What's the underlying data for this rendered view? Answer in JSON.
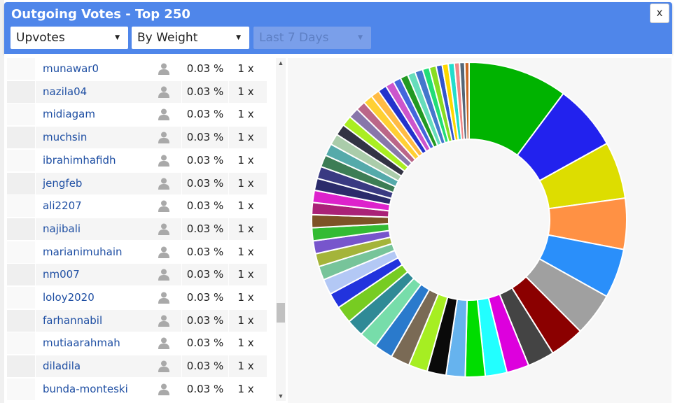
{
  "window": {
    "title": "Outgoing Votes - Top 250",
    "close_label": "x"
  },
  "filters": {
    "type": {
      "selected": "Upvotes"
    },
    "sort": {
      "selected": "By Weight"
    },
    "period": {
      "selected": "Last 7 Days",
      "disabled": true
    }
  },
  "list": {
    "rows": [
      {
        "name": "munawar0",
        "percent": "0.03 %",
        "count": "1 x"
      },
      {
        "name": "nazila04",
        "percent": "0.03 %",
        "count": "1 x"
      },
      {
        "name": "midiagam",
        "percent": "0.03 %",
        "count": "1 x"
      },
      {
        "name": "muchsin",
        "percent": "0.03 %",
        "count": "1 x"
      },
      {
        "name": "ibrahimhafidh",
        "percent": "0.03 %",
        "count": "1 x"
      },
      {
        "name": "jengfeb",
        "percent": "0.03 %",
        "count": "1 x"
      },
      {
        "name": "ali2207",
        "percent": "0.03 %",
        "count": "1 x"
      },
      {
        "name": "najibali",
        "percent": "0.03 %",
        "count": "1 x"
      },
      {
        "name": "marianimuhain",
        "percent": "0.03 %",
        "count": "1 x"
      },
      {
        "name": "nm007",
        "percent": "0.03 %",
        "count": "1 x"
      },
      {
        "name": "loloy2020",
        "percent": "0.03 %",
        "count": "1 x"
      },
      {
        "name": "farhannabil",
        "percent": "0.03 %",
        "count": "1 x"
      },
      {
        "name": "mutiaarahmah",
        "percent": "0.03 %",
        "count": "1 x"
      },
      {
        "name": "diladila",
        "percent": "0.03 %",
        "count": "1 x"
      },
      {
        "name": "bunda-monteski",
        "percent": "0.03 %",
        "count": "1 x"
      }
    ]
  },
  "chart_data": {
    "type": "pie",
    "donut": true,
    "title": "",
    "legend": "none",
    "slices": [
      {
        "value": 11.5,
        "color": "#00b300"
      },
      {
        "value": 7.6,
        "color": "#2222ee"
      },
      {
        "value": 6.6,
        "color": "#dddd00"
      },
      {
        "value": 5.9,
        "color": "#ff9144"
      },
      {
        "value": 5.7,
        "color": "#2a8ffa"
      },
      {
        "value": 5.0,
        "color": "#a0a0a0"
      },
      {
        "value": 4.0,
        "color": "#8b0000"
      },
      {
        "value": 3.1,
        "color": "#444444"
      },
      {
        "value": 2.6,
        "color": "#dd00dd"
      },
      {
        "value": 2.5,
        "color": "#22ffff"
      },
      {
        "value": 2.3,
        "color": "#00dd00"
      },
      {
        "value": 2.2,
        "color": "#66b3ee"
      },
      {
        "value": 2.2,
        "color": "#0a0a0a"
      },
      {
        "value": 2.2,
        "color": "#a6ee22"
      },
      {
        "value": 2.2,
        "color": "#7a6a55"
      },
      {
        "value": 2.2,
        "color": "#2a7acc"
      },
      {
        "value": 2.1,
        "color": "#77ddaa"
      },
      {
        "value": 2.0,
        "color": "#2f8a96"
      },
      {
        "value": 2.0,
        "color": "#77cc22"
      },
      {
        "value": 1.8,
        "color": "#2233dd"
      },
      {
        "value": 1.8,
        "color": "#b3c8f5"
      },
      {
        "value": 1.6,
        "color": "#77c49a"
      },
      {
        "value": 1.5,
        "color": "#a4b43a"
      },
      {
        "value": 1.5,
        "color": "#7755cc"
      },
      {
        "value": 1.5,
        "color": "#33bb33"
      },
      {
        "value": 1.5,
        "color": "#7d5326"
      },
      {
        "value": 1.4,
        "color": "#aa2277"
      },
      {
        "value": 1.4,
        "color": "#dd22cc"
      },
      {
        "value": 1.4,
        "color": "#2b2b6b"
      },
      {
        "value": 1.4,
        "color": "#3a3a82"
      },
      {
        "value": 1.4,
        "color": "#3d7d55"
      },
      {
        "value": 1.4,
        "color": "#55aaaa"
      },
      {
        "value": 1.3,
        "color": "#aaccaa"
      },
      {
        "value": 1.3,
        "color": "#333344"
      },
      {
        "value": 1.2,
        "color": "#aaee22"
      },
      {
        "value": 1.2,
        "color": "#8877aa"
      },
      {
        "value": 1.1,
        "color": "#bb6688"
      },
      {
        "value": 1.1,
        "color": "#ffd033"
      },
      {
        "value": 1.0,
        "color": "#ffbb44"
      },
      {
        "value": 1.0,
        "color": "#2233cc"
      },
      {
        "value": 1.0,
        "color": "#cc55cc"
      },
      {
        "value": 0.9,
        "color": "#4466dd"
      },
      {
        "value": 0.9,
        "color": "#229922"
      },
      {
        "value": 0.9,
        "color": "#66ddbb"
      },
      {
        "value": 0.9,
        "color": "#4477cc"
      },
      {
        "value": 0.8,
        "color": "#22dd77"
      },
      {
        "value": 0.8,
        "color": "#88dd22"
      },
      {
        "value": 0.7,
        "color": "#3355cc"
      },
      {
        "value": 0.7,
        "color": "#ffd700"
      },
      {
        "value": 0.7,
        "color": "#22ddcc"
      },
      {
        "value": 0.6,
        "color": "#ee8888"
      },
      {
        "value": 0.6,
        "color": "#556677"
      },
      {
        "value": 0.5,
        "color": "#cc6622"
      }
    ]
  }
}
